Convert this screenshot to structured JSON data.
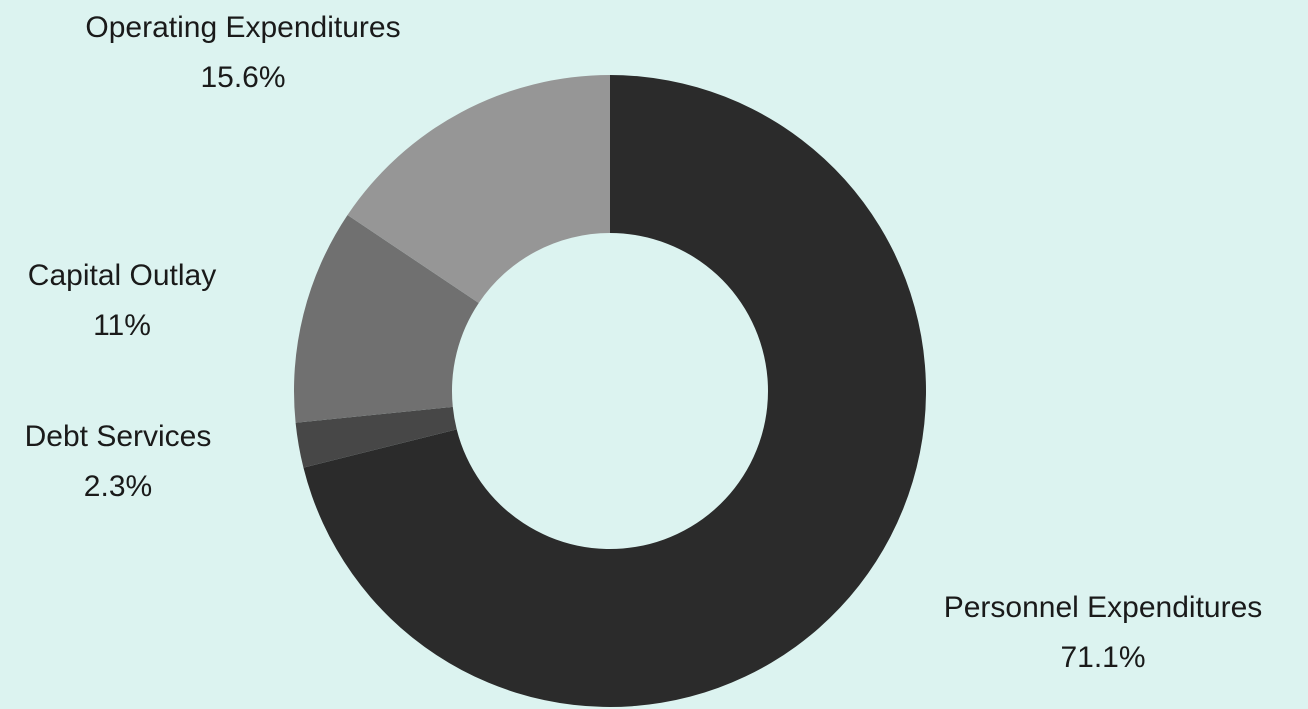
{
  "chart_data": {
    "type": "pie",
    "variant": "donut",
    "start_angle_deg": 0,
    "direction": "clockwise",
    "slices": [
      {
        "name": "Personnel Expenditures",
        "value": 71.1,
        "label": "71.1%",
        "color": "#2b2b2b"
      },
      {
        "name": "Debt Services",
        "value": 2.3,
        "label": "2.3%",
        "color": "#474747"
      },
      {
        "name": "Capital Outlay",
        "value": 11,
        "label": "11%",
        "color": "#707070"
      },
      {
        "name": "Operating Expenditures",
        "value": 15.6,
        "label": "15.6%",
        "color": "#969696"
      }
    ]
  },
  "background_color": "#dcf3f0"
}
